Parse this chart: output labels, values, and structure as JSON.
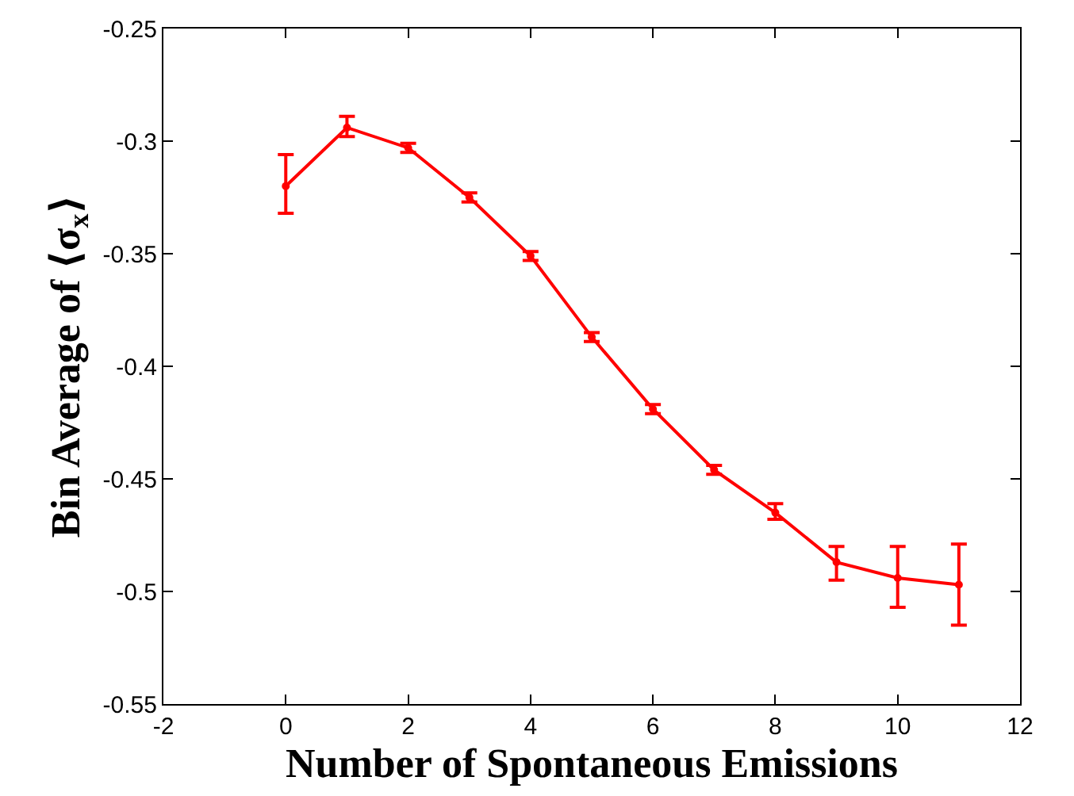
{
  "chart_data": {
    "type": "line",
    "xlabel": "Number of Spontaneous Emissions",
    "ylabel": "Bin Average of ⟨σ$_{x}$⟩",
    "x": [
      0,
      1,
      2,
      3,
      4,
      5,
      6,
      7,
      8,
      9,
      10,
      11
    ],
    "series": [
      {
        "color": "#ff0000",
        "values": [
          -0.32,
          -0.294,
          -0.303,
          -0.325,
          -0.351,
          -0.387,
          -0.419,
          -0.446,
          -0.465,
          -0.487,
          -0.494,
          -0.497
        ],
        "errors": [
          [
            -0.332,
            -0.306
          ],
          [
            -0.298,
            -0.289
          ],
          [
            -0.305,
            -0.301
          ],
          [
            -0.327,
            -0.323
          ],
          [
            -0.353,
            -0.349
          ],
          [
            -0.389,
            -0.385
          ],
          [
            -0.421,
            -0.417
          ],
          [
            -0.448,
            -0.444
          ],
          [
            -0.468,
            -0.461
          ],
          [
            -0.495,
            -0.48
          ],
          [
            -0.507,
            -0.48
          ],
          [
            -0.515,
            -0.479
          ]
        ]
      }
    ],
    "xlim": [
      -2,
      12
    ],
    "xticks": [
      -2,
      0,
      2,
      4,
      6,
      8,
      10,
      12
    ],
    "ylim": [
      -0.55,
      -0.25
    ],
    "yticks": [
      -0.55,
      -0.5,
      -0.45,
      -0.4,
      -0.35,
      -0.3,
      -0.25
    ],
    "grid": false,
    "marker": "circle",
    "line_style": "solid"
  }
}
